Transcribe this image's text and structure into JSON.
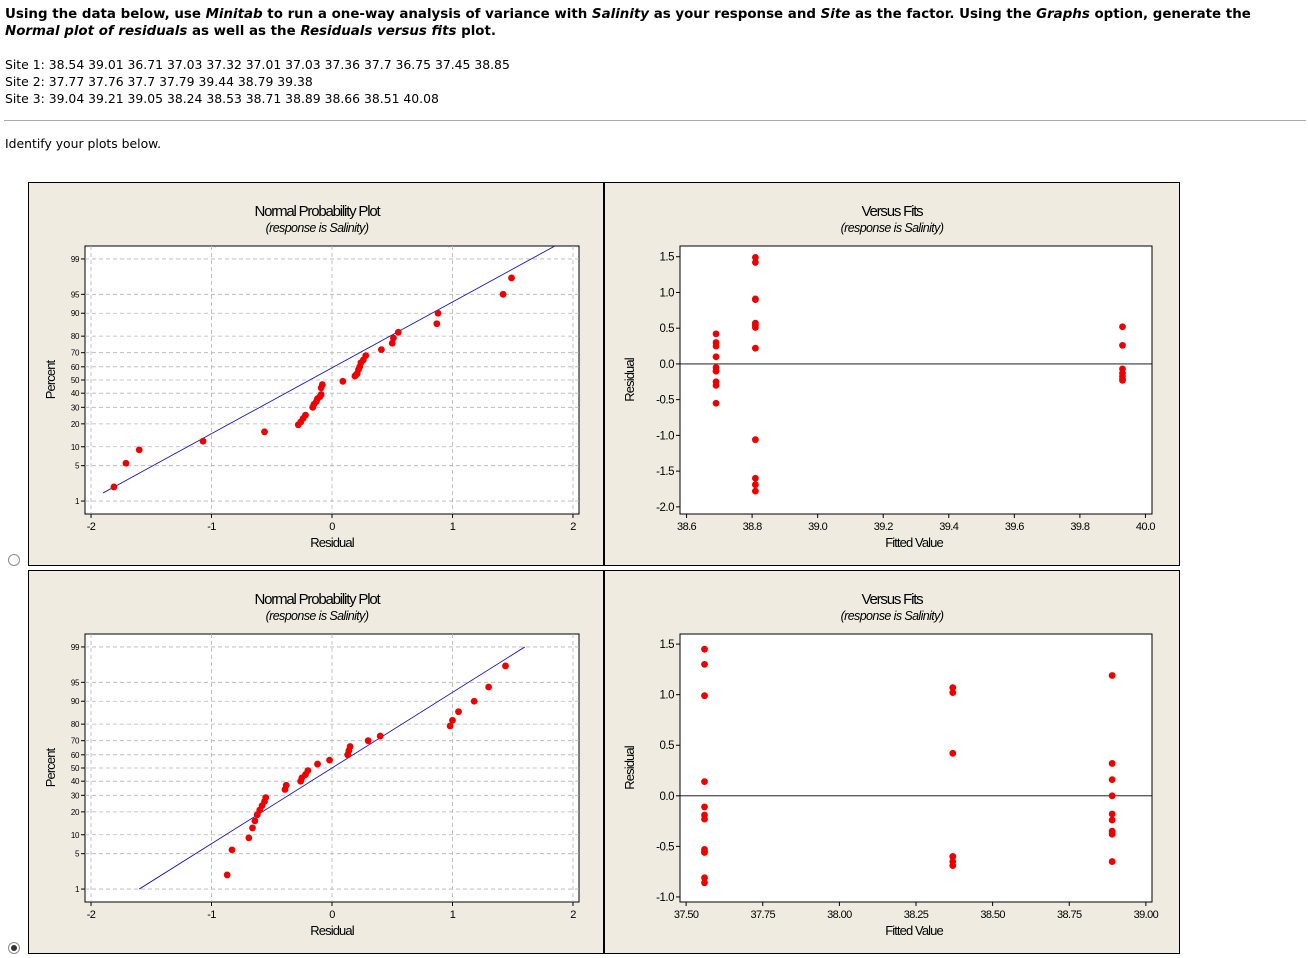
{
  "question": {
    "part1": "Using the data below, use ",
    "minitab": "Minitab",
    "part2": " to run a one-way analysis of variance with ",
    "salinity": "Salinity",
    "part3": " as your response and ",
    "site": "Site",
    "part4": " as the factor. Using the ",
    "graphs": "Graphs",
    "part5": " option, generate the ",
    "normal": "Normal plot of residuals",
    "part6": " as well as the ",
    "resfits": "Residuals versus fits",
    "part7": " plot."
  },
  "data_lines": [
    "Site 1: 38.54 39.01 36.71 37.03 37.32 37.01 37.03 37.36 37.7 36.75 37.45 38.85",
    "Site 2: 37.77 37.76 37.7 37.79 39.44 38.79 39.38",
    "Site 3: 39.04 39.21 39.05 38.24 38.53 38.71 38.89 38.66 38.51 40.08"
  ],
  "instruction": "Identify your plots below.",
  "options": [
    {
      "selected": false
    },
    {
      "selected": true
    }
  ],
  "colors": {
    "panel_bg": "#efebe1",
    "plot_bg": "#ffffff",
    "point": "#ee0000",
    "fit_line": "#1515c8",
    "grid": "#b4b4b4",
    "frame": "#000000"
  },
  "chart_data": [
    {
      "type": "scatter",
      "title": "Normal Probability Plot",
      "subtitle": "(response is Salinity)",
      "xlabel": "Residual",
      "ylabel": "Percent",
      "xlim": [
        -2.05,
        2.05
      ],
      "x_ticks": [
        "-2",
        "-1",
        "0",
        "1",
        "2"
      ],
      "y_ticks": [
        "1",
        "5",
        "10",
        "20",
        "30",
        "40",
        "50",
        "60",
        "70",
        "80",
        "90",
        "95",
        "99"
      ],
      "grid": true,
      "fit_line": {
        "x": [
          -1.9,
          1.85
        ],
        "y": [
          1.5,
          99.5
        ]
      },
      "x": [
        -1.81,
        -1.71,
        -1.6,
        -1.07,
        -0.56,
        -0.28,
        -0.26,
        -0.24,
        -0.22,
        -0.16,
        -0.15,
        -0.13,
        -0.12,
        -0.1,
        -0.09,
        -0.09,
        -0.08,
        0.09,
        0.19,
        0.2,
        0.21,
        0.22,
        0.23,
        0.24,
        0.26,
        0.28,
        0.41,
        0.5,
        0.51,
        0.55,
        0.87,
        0.88,
        1.42,
        1.49
      ],
      "y": [
        2,
        5.5,
        9,
        12,
        16,
        19.5,
        21,
        23,
        25,
        30,
        32,
        34,
        36,
        37.5,
        39,
        44,
        46.5,
        49,
        53,
        54,
        55,
        58,
        60,
        63,
        65,
        68,
        72,
        76,
        79,
        82,
        86,
        90,
        95,
        97.5
      ]
    },
    {
      "type": "scatter",
      "title": "Versus Fits",
      "subtitle": "(response is Salinity)",
      "xlabel": "Fitted Value",
      "ylabel": "Residual",
      "xlim": [
        38.58,
        40.02
      ],
      "ylim": [
        -2.1,
        1.65
      ],
      "x_ticks": [
        "38.6",
        "38.8",
        "39.0",
        "39.2",
        "39.4",
        "39.6",
        "39.8",
        "40.0"
      ],
      "y_ticks": [
        "-2.0",
        "-1.5",
        "-1.0",
        "-0.5",
        "0.0",
        "0.5",
        "1.0",
        "1.5"
      ],
      "zero_line": 0,
      "x": [
        38.69,
        38.69,
        38.69,
        38.69,
        38.69,
        38.69,
        38.69,
        38.69,
        38.69,
        38.69,
        38.81,
        38.81,
        38.81,
        38.81,
        38.81,
        38.81,
        38.81,
        38.81,
        38.81,
        38.81,
        38.81,
        38.81,
        39.93,
        39.93,
        39.93,
        39.93,
        39.93,
        39.93,
        39.93
      ],
      "y": [
        0.42,
        0.3,
        0.25,
        0.1,
        -0.05,
        -0.1,
        -0.25,
        -0.3,
        -0.55,
        -0.1,
        1.49,
        1.42,
        0.91,
        0.57,
        0.54,
        0.51,
        0.22,
        -1.06,
        -1.6,
        -1.69,
        -1.78,
        0.9,
        0.52,
        0.26,
        -0.07,
        -0.13,
        -0.17,
        -0.21,
        -0.23
      ]
    },
    {
      "type": "scatter",
      "title": "Normal Probability Plot",
      "subtitle": "(response is Salinity)",
      "xlabel": "Residual",
      "ylabel": "Percent",
      "xlim": [
        -2.05,
        2.05
      ],
      "x_ticks": [
        "-2",
        "-1",
        "0",
        "1",
        "2"
      ],
      "y_ticks": [
        "1",
        "5",
        "10",
        "20",
        "30",
        "40",
        "50",
        "60",
        "70",
        "80",
        "90",
        "95",
        "99"
      ],
      "grid": true,
      "fit_line": {
        "x": [
          -1.6,
          1.6
        ],
        "y": [
          1,
          99
        ]
      },
      "x": [
        -0.87,
        -0.83,
        -0.69,
        -0.66,
        -0.64,
        -0.62,
        -0.6,
        -0.58,
        -0.56,
        -0.55,
        -0.39,
        -0.38,
        -0.26,
        -0.25,
        -0.22,
        -0.2,
        -0.12,
        -0.02,
        0.13,
        0.14,
        0.15,
        0.3,
        0.4,
        0.98,
        1.0,
        1.05,
        1.18,
        1.3,
        1.44
      ],
      "y": [
        2,
        5.8,
        9,
        12.5,
        15.5,
        18.5,
        21,
        23.5,
        26,
        28.5,
        34,
        37,
        40,
        42.5,
        45,
        48,
        53,
        56,
        60,
        63,
        66,
        70,
        73,
        79,
        82,
        86,
        90,
        94,
        97.5
      ]
    },
    {
      "type": "scatter",
      "title": "Versus Fits",
      "subtitle": "(response is Salinity)",
      "xlabel": "Fitted Value",
      "ylabel": "Residual",
      "xlim": [
        37.48,
        39.02
      ],
      "ylim": [
        -1.05,
        1.6
      ],
      "x_ticks": [
        "37.50",
        "37.75",
        "38.00",
        "38.25",
        "38.50",
        "38.75",
        "39.00"
      ],
      "y_ticks": [
        "-1.0",
        "-0.5",
        "0.0",
        "0.5",
        "1.0",
        "1.5"
      ],
      "zero_line": 0,
      "x": [
        37.56,
        37.56,
        37.56,
        37.56,
        37.56,
        37.56,
        37.56,
        37.56,
        37.56,
        37.56,
        37.56,
        37.56,
        38.37,
        38.37,
        38.37,
        38.37,
        38.37,
        38.37,
        38.37,
        38.89,
        38.89,
        38.89,
        38.89,
        38.89,
        38.89,
        38.89,
        38.89,
        38.89,
        38.89
      ],
      "y": [
        1.45,
        1.3,
        0.99,
        0.14,
        -0.11,
        -0.19,
        -0.23,
        -0.53,
        -0.55,
        -0.81,
        -0.86,
        -0.56,
        1.07,
        1.02,
        0.42,
        -0.6,
        -0.65,
        -0.69,
        -0.6,
        1.19,
        0.32,
        0.16,
        0.0,
        -0.18,
        -0.24,
        -0.35,
        -0.38,
        -0.65,
        -0.37
      ]
    }
  ]
}
